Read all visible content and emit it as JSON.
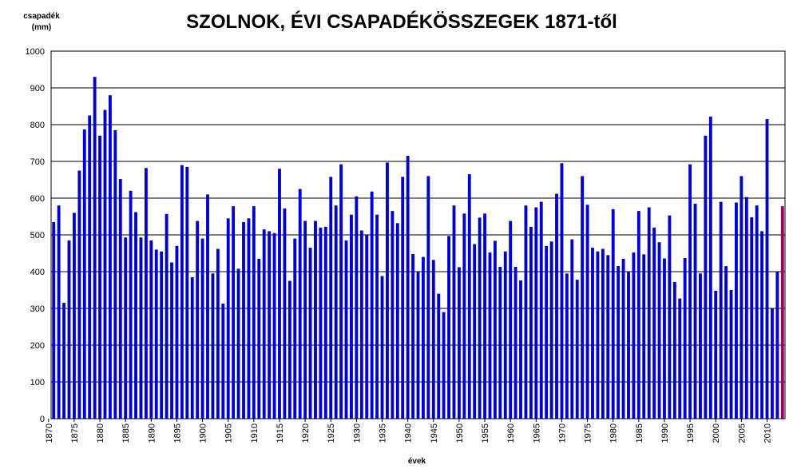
{
  "chart_data": {
    "type": "bar",
    "title": "SZOLNOK, ÉVI CSAPADÉKÖSSZEGEK 1871-től",
    "ylabel_line1": "csapadék",
    "ylabel_line2": "(mm)",
    "xlabel": "évek",
    "ylim": [
      0,
      1000
    ],
    "yticks": [
      0,
      100,
      200,
      300,
      400,
      500,
      600,
      700,
      800,
      900,
      1000
    ],
    "xtick_labels": [
      "1870",
      "1875",
      "1880",
      "1885",
      "1890",
      "1895",
      "1900",
      "1905",
      "1910",
      "1915",
      "1920",
      "1925",
      "1930",
      "1935",
      "1940",
      "1945",
      "1950",
      "1955",
      "1960",
      "1965",
      "1970",
      "1975",
      "1980",
      "1985",
      "1990",
      "1995",
      "2000",
      "2005",
      "2010"
    ],
    "grid": true,
    "bar_color": "#0000cc",
    "highlight_color": "#990066",
    "highlight_last": true,
    "start_year": 1871,
    "values": [
      535,
      580,
      315,
      485,
      560,
      675,
      787,
      825,
      930,
      770,
      840,
      880,
      785,
      652,
      493,
      620,
      562,
      493,
      682,
      485,
      460,
      455,
      557,
      425,
      470,
      690,
      685,
      385,
      538,
      490,
      610,
      395,
      462,
      313,
      545,
      578,
      408,
      535,
      545,
      578,
      435,
      515,
      510,
      505,
      680,
      572,
      375,
      490,
      625,
      538,
      465,
      538,
      520,
      522,
      658,
      580,
      692,
      485,
      555,
      605,
      512,
      500,
      618,
      555,
      388,
      697,
      565,
      532,
      658,
      715,
      448,
      400,
      440,
      660,
      432,
      340,
      290,
      497,
      580,
      412,
      558,
      665,
      475,
      547,
      558,
      452,
      484,
      413,
      455,
      538,
      413,
      376,
      580,
      522,
      575,
      590,
      470,
      482,
      612,
      695,
      395,
      488,
      378,
      660,
      582,
      465,
      455,
      462,
      445,
      570,
      415,
      435,
      400,
      452,
      565,
      447,
      575,
      520,
      480,
      436,
      553,
      372,
      327,
      437,
      692,
      585,
      395,
      770,
      822,
      348,
      590,
      415,
      350,
      588,
      660,
      603,
      548,
      580,
      510,
      815,
      300,
      400,
      578
    ]
  }
}
